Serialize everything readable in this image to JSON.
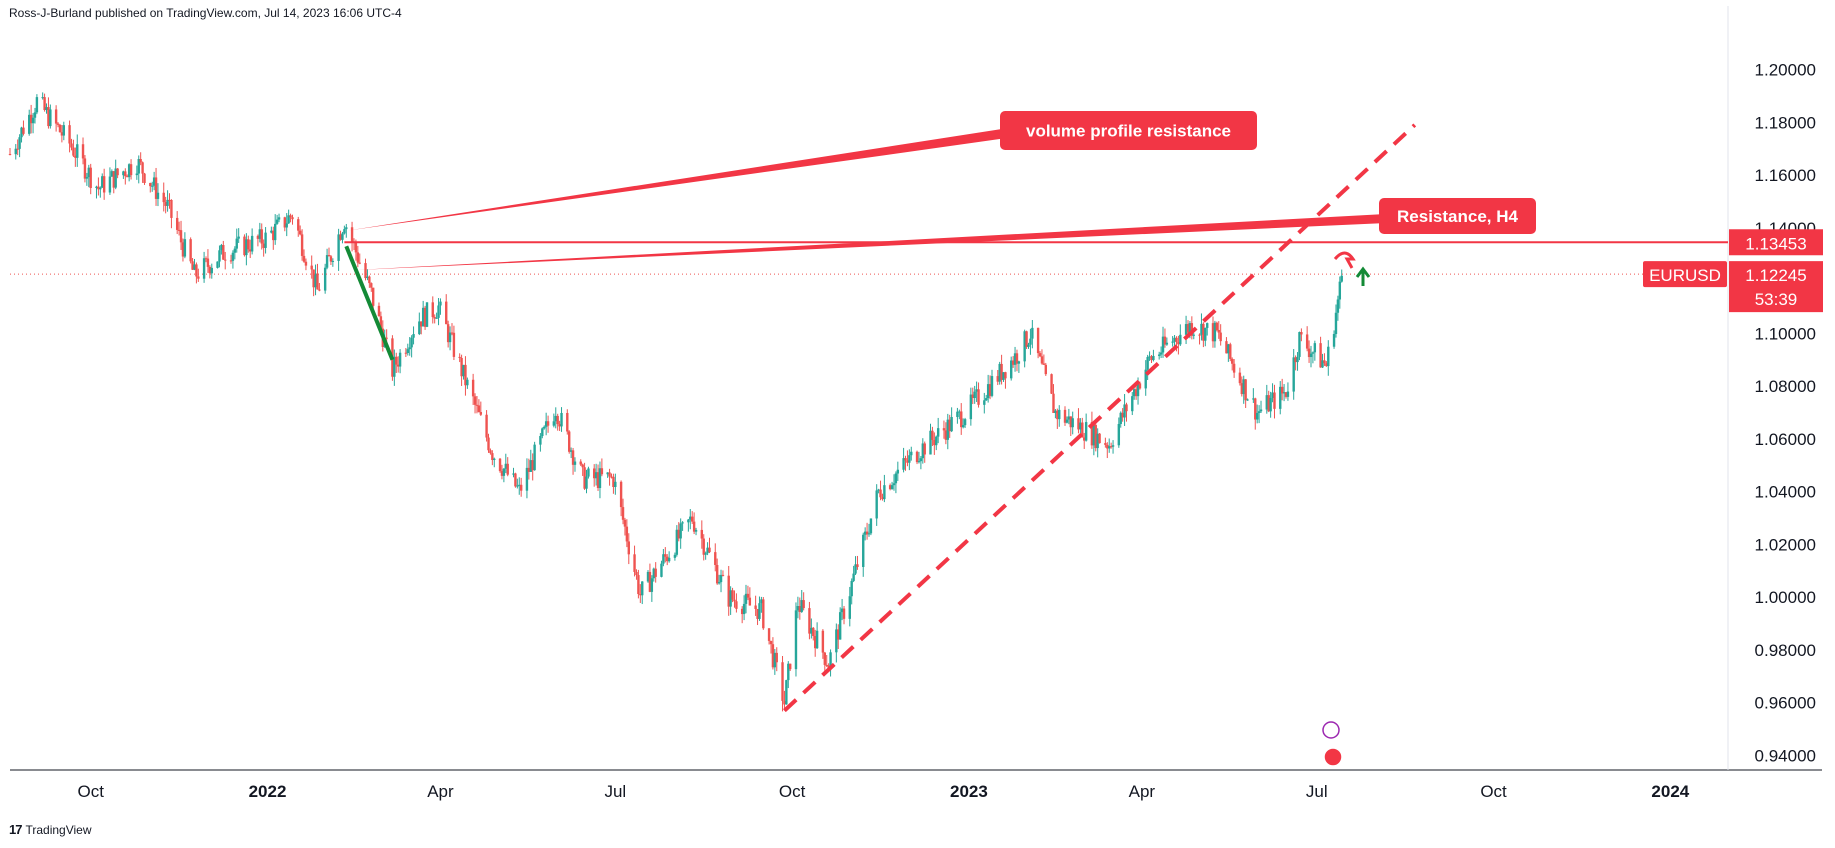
{
  "publisher": "Ross-J-Burland published on TradingView.com, Jul 14, 2023 16:06 UTC-4",
  "footer": {
    "logo": "17",
    "label": "TradingView"
  },
  "colors": {
    "up": "#26a69a",
    "down": "#ef5350",
    "annotation": "#f23645",
    "trend": "#138a36"
  },
  "chart_data": {
    "type": "candlestick",
    "symbol": "EURUSD",
    "ylim": [
      0.9345,
      1.2165
    ],
    "y_ticks": [
      0.94,
      0.96,
      0.98,
      1.0,
      1.02,
      1.04,
      1.06,
      1.08,
      1.1,
      1.14,
      1.16,
      1.18,
      1.2
    ],
    "y_tick_labels": [
      "0.94000",
      "0.96000",
      "0.98000",
      "1.00000",
      "1.02000",
      "1.04000",
      "1.06000",
      "1.08000",
      "1.10000",
      "1.14000",
      "1.16000",
      "1.18000",
      "1.20000"
    ],
    "x_range": [
      "2021-08-20",
      "2024-01-31"
    ],
    "x_ticks": [
      {
        "label": "Oct",
        "date": "2021-10-01",
        "year": false
      },
      {
        "label": "2022",
        "date": "2022-01-01",
        "year": true
      },
      {
        "label": "Apr",
        "date": "2022-04-01",
        "year": false
      },
      {
        "label": "Jul",
        "date": "2022-07-01",
        "year": false
      },
      {
        "label": "Oct",
        "date": "2022-10-01",
        "year": false
      },
      {
        "label": "2023",
        "date": "2023-01-01",
        "year": true
      },
      {
        "label": "Apr",
        "date": "2023-04-01",
        "year": false
      },
      {
        "label": "Jul",
        "date": "2023-07-01",
        "year": false
      },
      {
        "label": "Oct",
        "date": "2023-10-01",
        "year": false
      },
      {
        "label": "2024",
        "date": "2024-01-01",
        "year": true
      }
    ],
    "path": [
      [
        "2021-08-20",
        1.168
      ],
      [
        "2021-09-03",
        1.188
      ],
      [
        "2021-09-20",
        1.172
      ],
      [
        "2021-10-05",
        1.155
      ],
      [
        "2021-10-25",
        1.165
      ],
      [
        "2021-11-10",
        1.148
      ],
      [
        "2021-11-24",
        1.122
      ],
      [
        "2021-12-10",
        1.131
      ],
      [
        "2021-12-31",
        1.136
      ],
      [
        "2022-01-14",
        1.145
      ],
      [
        "2022-01-27",
        1.116
      ],
      [
        "2022-02-10",
        1.143
      ],
      [
        "2022-02-24",
        1.115
      ],
      [
        "2022-03-07",
        1.086
      ],
      [
        "2022-03-20",
        1.105
      ],
      [
        "2022-03-31",
        1.11
      ],
      [
        "2022-04-14",
        1.082
      ],
      [
        "2022-04-28",
        1.055
      ],
      [
        "2022-05-12",
        1.04
      ],
      [
        "2022-05-31",
        1.072
      ],
      [
        "2022-06-14",
        1.045
      ],
      [
        "2022-06-30",
        1.045
      ],
      [
        "2022-07-14",
        1.001
      ],
      [
        "2022-08-10",
        1.03
      ],
      [
        "2022-08-29",
        1.0
      ],
      [
        "2022-09-15",
        0.995
      ],
      [
        "2022-09-27",
        0.96
      ],
      [
        "2022-10-04",
        0.998
      ],
      [
        "2022-10-20",
        0.975
      ],
      [
        "2022-11-15",
        1.04
      ],
      [
        "2022-12-05",
        1.055
      ],
      [
        "2022-12-30",
        1.07
      ],
      [
        "2023-01-26",
        1.092
      ],
      [
        "2023-02-02",
        1.1
      ],
      [
        "2023-02-15",
        1.07
      ],
      [
        "2023-03-15",
        1.058
      ],
      [
        "2023-04-05",
        1.09
      ],
      [
        "2023-04-26",
        1.103
      ],
      [
        "2023-05-10",
        1.1
      ],
      [
        "2023-05-31",
        1.07
      ],
      [
        "2023-06-15",
        1.078
      ],
      [
        "2023-06-22",
        1.098
      ],
      [
        "2023-07-06",
        1.088
      ],
      [
        "2023-07-12",
        1.112
      ],
      [
        "2023-07-14",
        1.122
      ]
    ],
    "last_price": 1.12245,
    "countdown": "53:39",
    "horizontal_level": 1.13453,
    "trendline": {
      "start": [
        "2022-09-27",
        0.957
      ],
      "end": [
        "2023-08-21",
        1.179
      ],
      "style": "dashed"
    },
    "down_move": {
      "start": [
        "2022-02-11",
        1.133
      ],
      "end": [
        "2022-03-07",
        1.09
      ]
    },
    "annotations": [
      {
        "text": "volume profile resistance",
        "target": [
          "2022-02-12",
          1.139
        ]
      },
      {
        "text": "Resistance, H4",
        "target": [
          "2022-02-16",
          1.124
        ]
      }
    ]
  }
}
